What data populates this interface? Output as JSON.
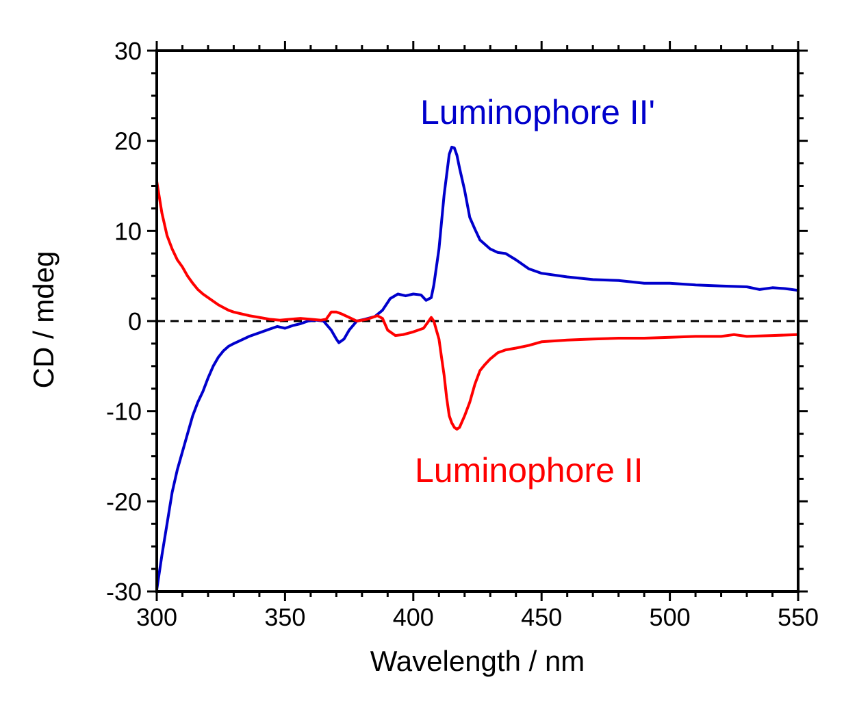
{
  "chart_data": {
    "type": "line",
    "title": "",
    "xlabel": "Wavelength / nm",
    "ylabel": "CD / mdeg",
    "xlim": [
      300,
      550
    ],
    "ylim": [
      -30,
      30
    ],
    "x_ticks": [
      300,
      350,
      400,
      450,
      500,
      550
    ],
    "y_ticks": [
      -30,
      -20,
      -10,
      0,
      10,
      20,
      30
    ],
    "x_tick_labels": [
      "300",
      "350",
      "400",
      "450",
      "500",
      "550"
    ],
    "y_tick_labels": [
      "-30",
      "-20",
      "-10",
      "0",
      "10",
      "20",
      "30"
    ],
    "zero_line": true,
    "grid": false,
    "legend": "inline labels",
    "series": [
      {
        "name": "Luminophore II'",
        "label": "Luminophore II'",
        "color": "#0000cc",
        "x": [
          300,
          302,
          304,
          306,
          308,
          310,
          312,
          314,
          316,
          318,
          320,
          322,
          324,
          326,
          328,
          330,
          333,
          336,
          340,
          344,
          347,
          350,
          353,
          356,
          359,
          362,
          365,
          368,
          370,
          371,
          373,
          375,
          378,
          381,
          385,
          388,
          391,
          394,
          397,
          400,
          403,
          405,
          407,
          408,
          410,
          412,
          414,
          415,
          416,
          417,
          418,
          420,
          422,
          424,
          426,
          428,
          430,
          433,
          436,
          440,
          445,
          450,
          460,
          470,
          480,
          490,
          500,
          510,
          520,
          530,
          535,
          540,
          545,
          550
        ],
        "y": [
          -29.8,
          -26,
          -22.5,
          -19,
          -16.5,
          -14.5,
          -12.5,
          -10.5,
          -9,
          -7.8,
          -6.3,
          -5,
          -4,
          -3.3,
          -2.8,
          -2.5,
          -2.1,
          -1.7,
          -1.3,
          -0.9,
          -0.6,
          -0.8,
          -0.5,
          -0.3,
          0,
          0.1,
          0,
          -1,
          -2,
          -2.4,
          -2,
          -1,
          0,
          0.2,
          0.5,
          1.2,
          2.5,
          3,
          2.8,
          3,
          2.9,
          2.3,
          2.6,
          4,
          8,
          14,
          18.5,
          19.3,
          19.2,
          18.4,
          17,
          14.5,
          11.5,
          10.2,
          9,
          8.5,
          8,
          7.6,
          7.5,
          6.8,
          5.8,
          5.3,
          4.9,
          4.6,
          4.5,
          4.2,
          4.2,
          4,
          3.9,
          3.8,
          3.5,
          3.7,
          3.6,
          3.4
        ]
      },
      {
        "name": "Luminophore II",
        "label": "Luminophore II",
        "color": "#ff0000",
        "x": [
          300,
          302,
          304,
          306,
          308,
          310,
          312,
          314,
          316,
          318,
          320,
          322,
          324,
          326,
          328,
          330,
          333,
          336,
          340,
          344,
          348,
          352,
          356,
          360,
          364,
          366,
          368,
          370,
          372,
          375,
          378,
          382,
          386,
          388,
          390,
          393,
          396,
          400,
          404,
          406,
          407,
          408,
          409,
          410,
          411,
          412,
          413,
          414,
          415,
          416,
          417,
          418,
          420,
          422,
          424,
          426,
          428,
          430,
          433,
          436,
          440,
          445,
          450,
          460,
          470,
          480,
          490,
          500,
          510,
          520,
          525,
          530,
          540,
          550
        ],
        "y": [
          15.5,
          12,
          9.5,
          8,
          6.8,
          6,
          5,
          4.2,
          3.5,
          3,
          2.6,
          2.2,
          1.8,
          1.5,
          1.2,
          1,
          0.8,
          0.6,
          0.4,
          0.2,
          0.1,
          0.2,
          0.3,
          0.2,
          0.1,
          0.2,
          1,
          1,
          0.8,
          0.4,
          0,
          0.2,
          0.6,
          0.3,
          -1,
          -1.6,
          -1.5,
          -1.2,
          -0.8,
          0,
          0.4,
          0,
          -1,
          -2,
          -4,
          -6,
          -8.5,
          -10.5,
          -11.3,
          -11.8,
          -12,
          -11.8,
          -10.5,
          -9,
          -7,
          -5.5,
          -4.8,
          -4.2,
          -3.5,
          -3.2,
          -3,
          -2.7,
          -2.3,
          -2.1,
          -2,
          -1.9,
          -1.9,
          -1.8,
          -1.7,
          -1.7,
          -1.5,
          -1.7,
          -1.6,
          -1.5
        ]
      }
    ]
  }
}
